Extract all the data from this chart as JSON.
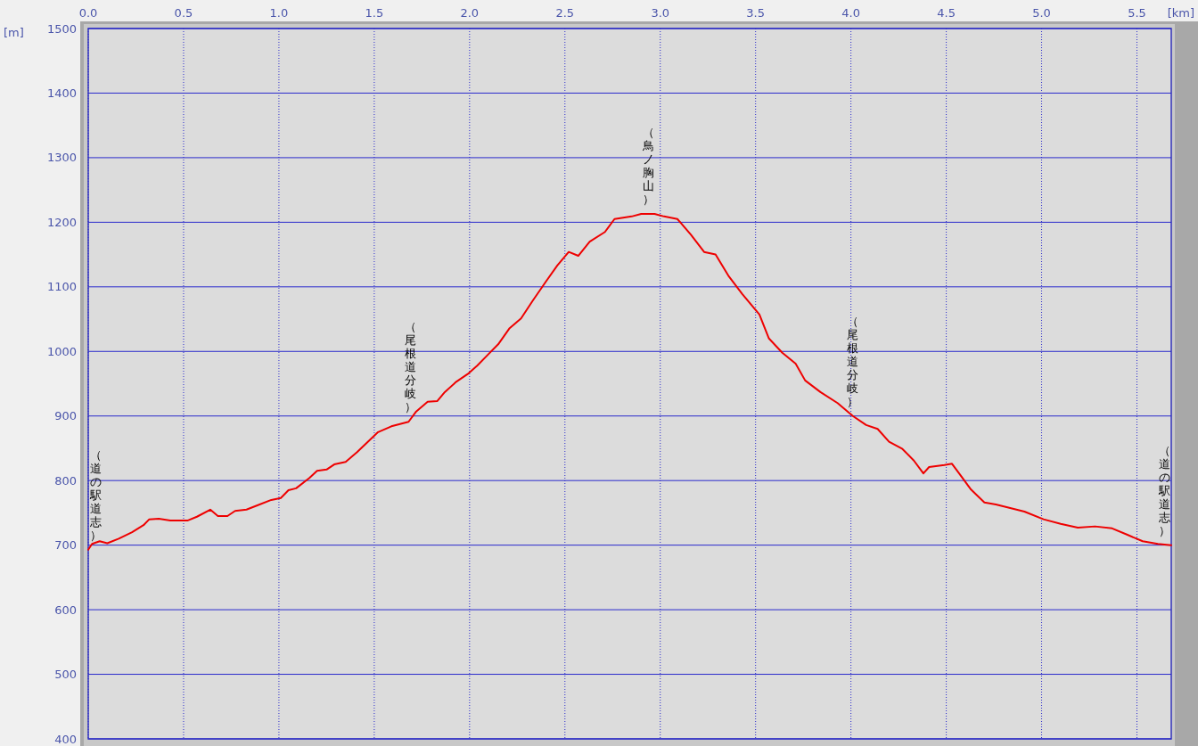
{
  "chart_data": {
    "type": "line",
    "xlabel": "[km]",
    "ylabel": "[m]",
    "xlim": [
      0,
      5.68
    ],
    "ylim": [
      400,
      1500
    ],
    "xticks": [
      {
        "value": 0,
        "label": "0.0"
      },
      {
        "value": 0.5,
        "label": "0.5"
      },
      {
        "value": 1,
        "label": "1.0"
      },
      {
        "value": 1.5,
        "label": "1.5"
      },
      {
        "value": 2,
        "label": "2.0"
      },
      {
        "value": 2.5,
        "label": "2.5"
      },
      {
        "value": 3,
        "label": "3.0"
      },
      {
        "value": 3.5,
        "label": "3.5"
      },
      {
        "value": 4,
        "label": "4.0"
      },
      {
        "value": 4.5,
        "label": "4.5"
      },
      {
        "value": 5,
        "label": "5.0"
      },
      {
        "value": 5.5,
        "label": "5.5"
      }
    ],
    "yticks": [
      400,
      500,
      600,
      700,
      800,
      900,
      1000,
      1100,
      1200,
      1300,
      1400,
      1500
    ],
    "grid": true,
    "marker": "none",
    "line_style": "solid",
    "series": [
      {
        "color": "#ee0000",
        "x": [
          0,
          0.02,
          0.06,
          0.1,
          0.16,
          0.23,
          0.29,
          0.32,
          0.37,
          0.43,
          0.52,
          0.57,
          0.64,
          0.68,
          0.73,
          0.77,
          0.83,
          0.89,
          0.96,
          1.01,
          1.05,
          1.09,
          1.16,
          1.2,
          1.25,
          1.29,
          1.35,
          1.41,
          1.47,
          1.52,
          1.59,
          1.68,
          1.72,
          1.78,
          1.83,
          1.87,
          1.93,
          1.99,
          2.04,
          2.1,
          2.15,
          2.21,
          2.27,
          2.33,
          2.4,
          2.46,
          2.52,
          2.57,
          2.63,
          2.71,
          2.76,
          2.85,
          2.9,
          2.97,
          3.02,
          3.09,
          3.16,
          3.23,
          3.29,
          3.36,
          3.43,
          3.52,
          3.57,
          3.64,
          3.71,
          3.76,
          3.84,
          3.93,
          4.01,
          4.08,
          4.14,
          4.2,
          4.27,
          4.33,
          4.38,
          4.41,
          4.49,
          4.53,
          4.57,
          4.63,
          4.7,
          4.76,
          4.84,
          4.91,
          5.01,
          5.1,
          5.19,
          5.28,
          5.37,
          5.45,
          5.53,
          5.61,
          5.68
        ],
        "values": [
          693,
          702,
          706,
          703,
          710,
          720,
          731,
          740,
          741,
          738,
          738,
          744,
          755,
          745,
          745,
          753,
          755,
          762,
          770,
          773,
          785,
          788,
          804,
          815,
          817,
          825,
          829,
          844,
          861,
          875,
          884,
          891,
          907,
          922,
          923,
          937,
          953,
          965,
          978,
          996,
          1011,
          1036,
          1051,
          1078,
          1108,
          1133,
          1154,
          1148,
          1170,
          1185,
          1205,
          1209,
          1213,
          1213,
          1209,
          1205,
          1181,
          1154,
          1150,
          1116,
          1089,
          1057,
          1020,
          998,
          981,
          955,
          937,
          920,
          900,
          886,
          880,
          860,
          849,
          831,
          811,
          821,
          824,
          826,
          810,
          786,
          766,
          763,
          757,
          752,
          740,
          733,
          727,
          729,
          726,
          716,
          706,
          702,
          700
        ]
      }
    ],
    "annotations": [
      {
        "text": "（道の駅道志）",
        "x": 0,
        "y": 693
      },
      {
        "text": "（尾根道分岐）",
        "x": 1.69,
        "y": 891
      },
      {
        "text": "（鳥ノ胸山）",
        "x": 2.94,
        "y": 1213
      },
      {
        "text": "（尾根道分岐）",
        "x": 4.01,
        "y": 900
      },
      {
        "text": "（道の駅道志）",
        "x": 5.68,
        "y": 700
      }
    ]
  }
}
